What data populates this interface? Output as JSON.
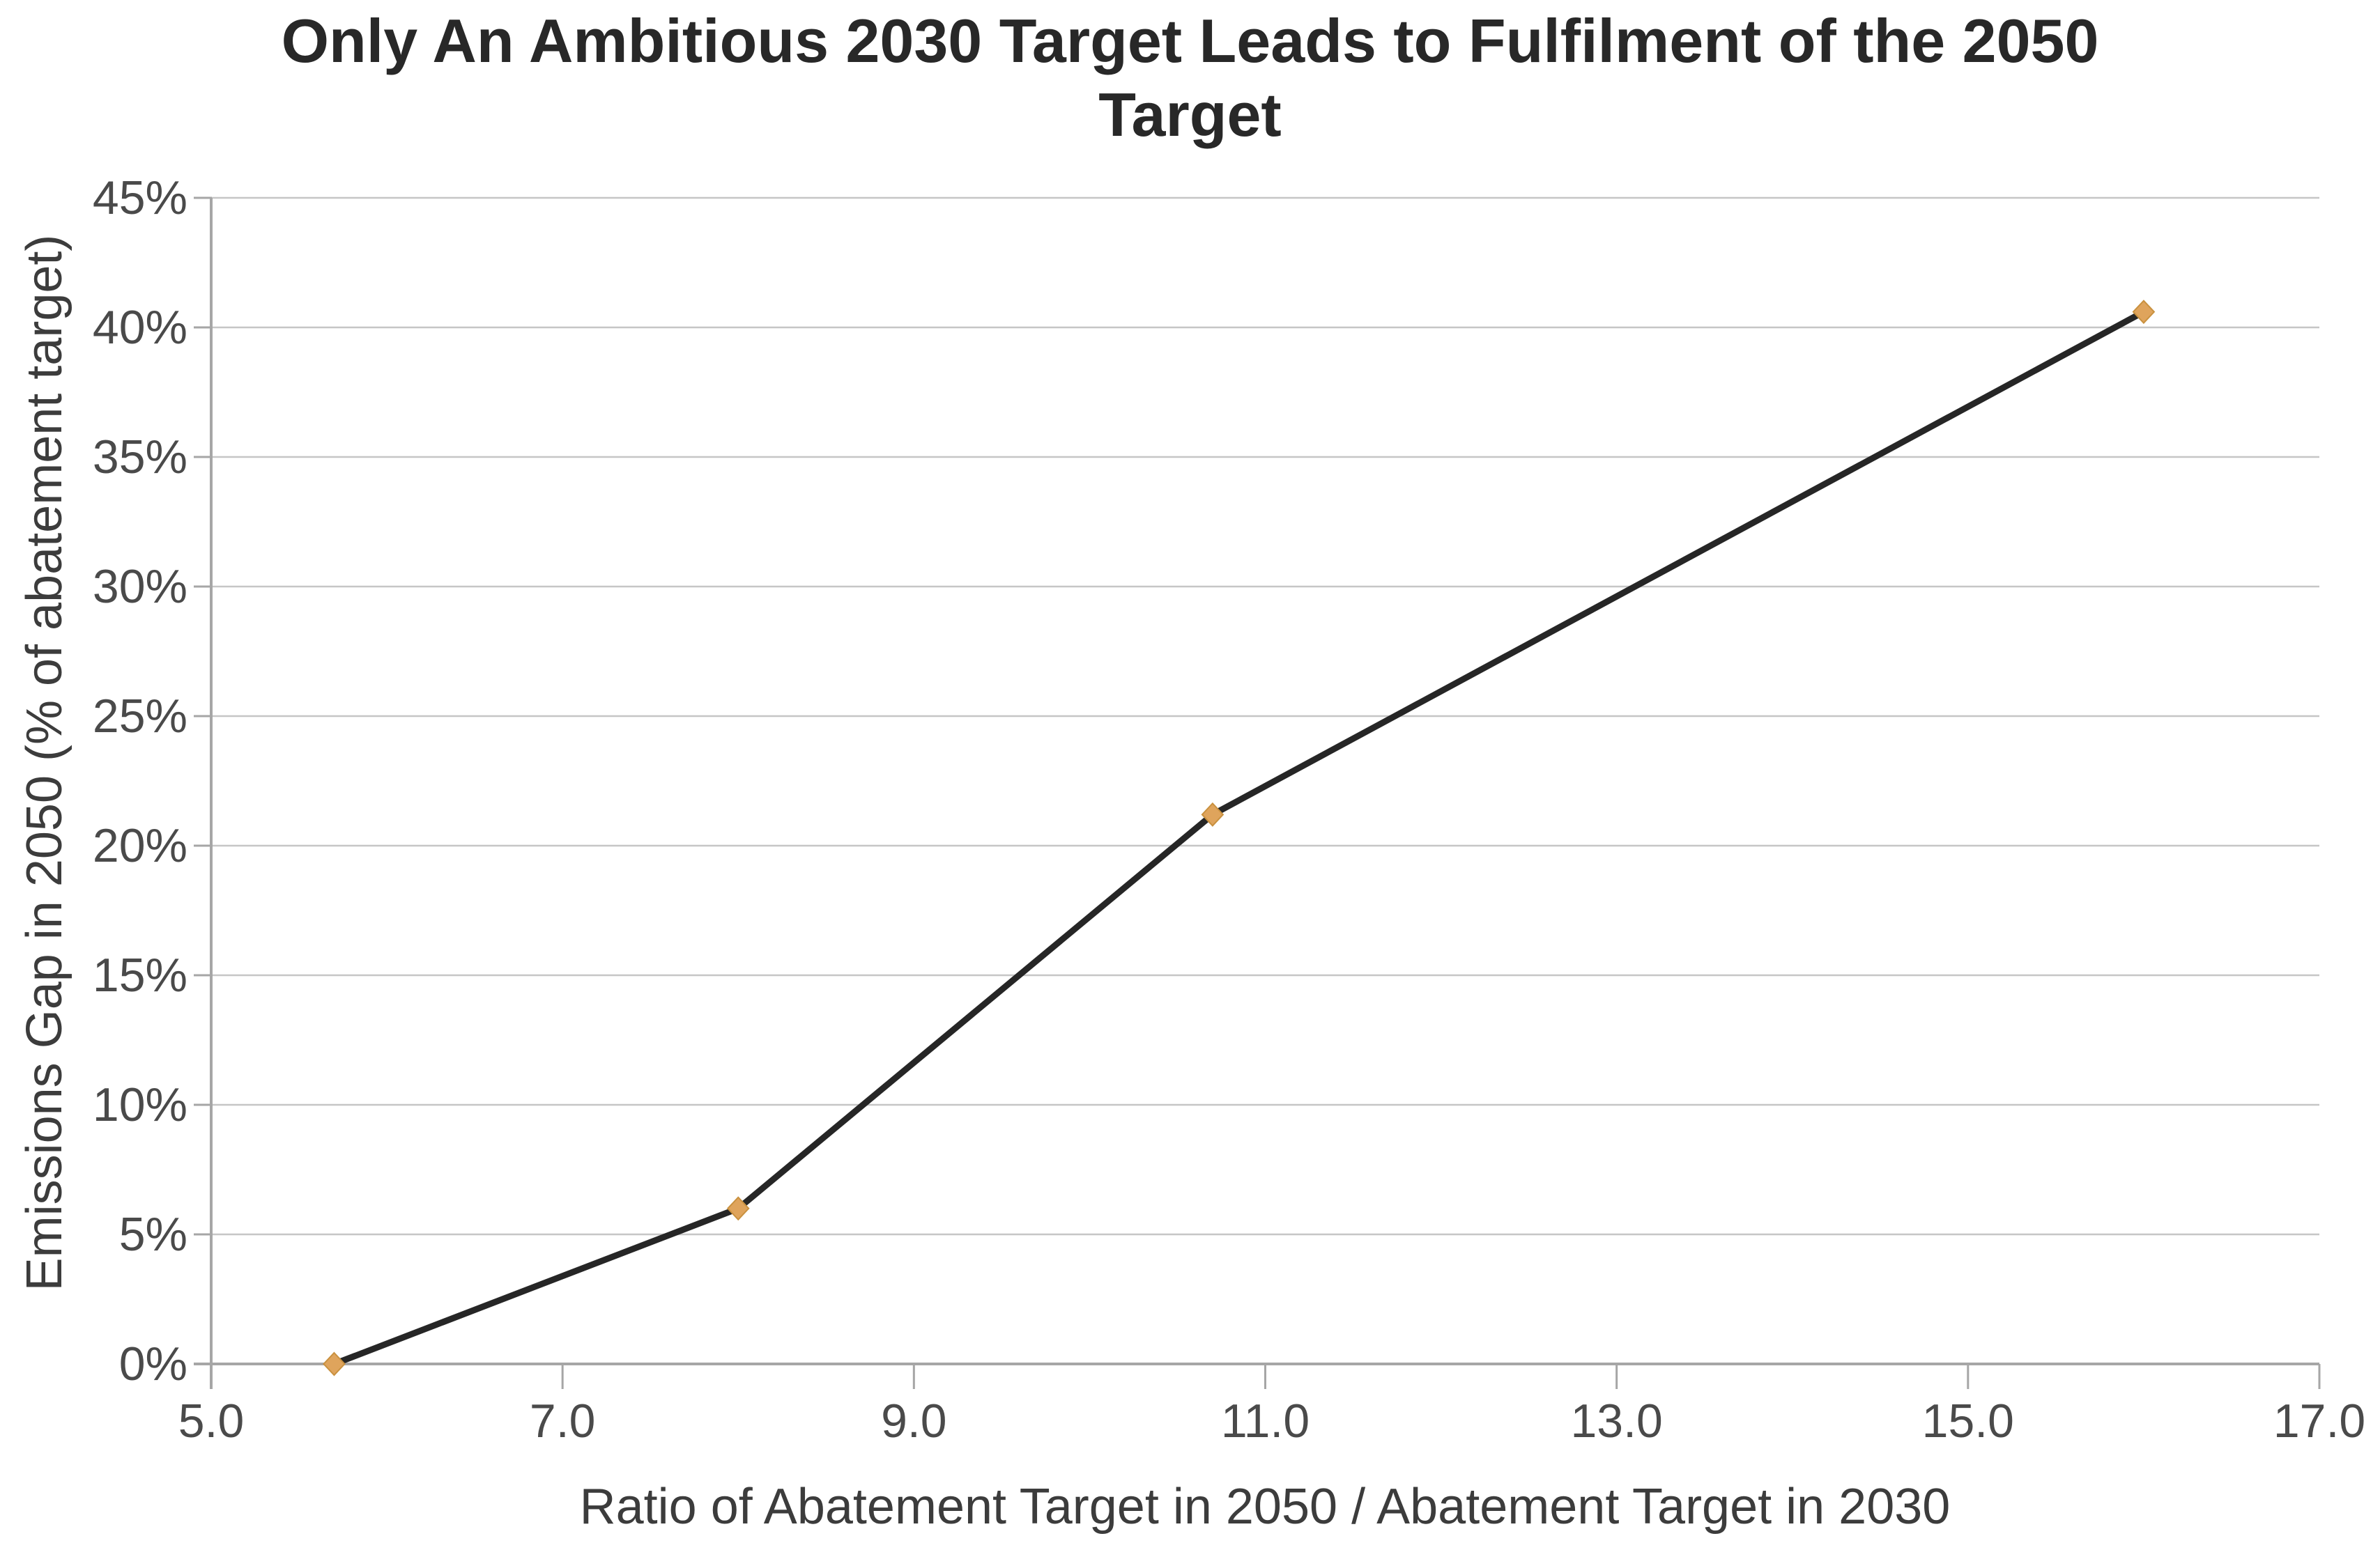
{
  "title": {
    "full": "Only An Ambitious 2030 Target Leads to Fulfilment of the 2050 Target",
    "line1": "Only An Ambitious 2030 Target Leads to Fulfilment of the 2050",
    "line2": "Target"
  },
  "chart_data": {
    "type": "line",
    "title": "Only An Ambitious 2030 Target Leads to Fulfilment of the 2050 Target",
    "xlabel": "Ratio of Abatement Target in 2050 / Abatement Target in 2030",
    "ylabel": "Emissions Gap in 2050 (% of abatement target)",
    "xlim": [
      5.0,
      17.0
    ],
    "ylim": [
      0,
      45
    ],
    "x_tick_labels": [
      "5.0",
      "7.0",
      "9.0",
      "11.0",
      "13.0",
      "15.0",
      "17.0"
    ],
    "y_tick_labels": [
      "0%",
      "5%",
      "10%",
      "15%",
      "20%",
      "25%",
      "30%",
      "35%",
      "40%",
      "45%"
    ],
    "grid": "horizontal-only",
    "legend": "none",
    "marker": "diamond",
    "series": [
      {
        "points": [
          {
            "x": 5.7,
            "y": 0.0
          },
          {
            "x": 8.0,
            "y": 6.0
          },
          {
            "x": 10.7,
            "y": 21.2
          },
          {
            "x": 16.0,
            "y": 40.6
          }
        ]
      }
    ],
    "colors": {
      "line": "#262626",
      "marker": "#dfa45c",
      "marker_edge": "#c9913f",
      "gridline": "#c6c6c6",
      "axis": "#a6a6a6",
      "tick_text": "#4a4a4a",
      "axis_title_text": "#3c3c3c",
      "title_text": "#282828",
      "background": "#ffffff"
    }
  }
}
